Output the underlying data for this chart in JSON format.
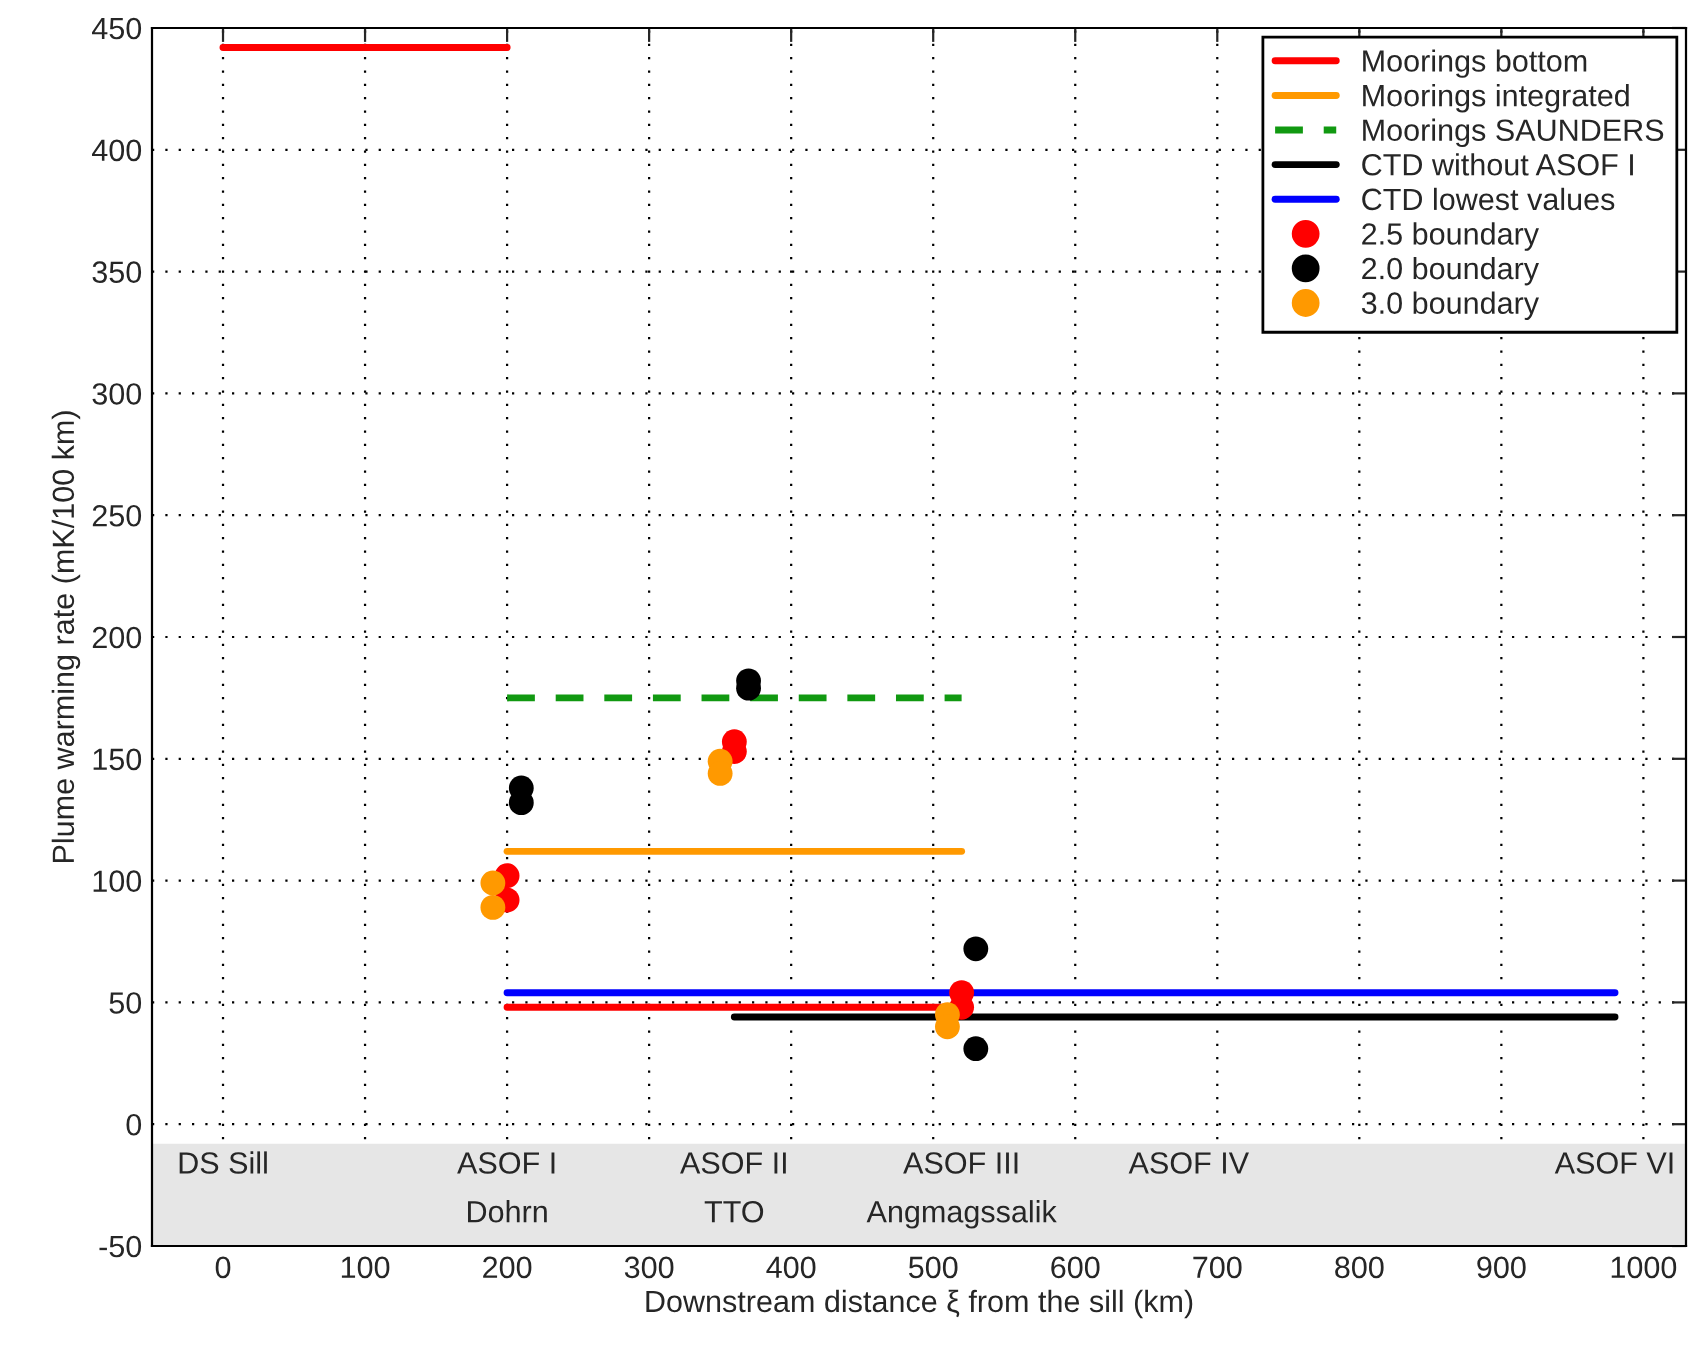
{
  "chart_data": {
    "type": "line",
    "xlabel": "Downstream distance ξ from the sill (km)",
    "ylabel": "Plume warming rate (mK/100 km)",
    "xlim": [
      -50,
      1030
    ],
    "xticks": [
      0,
      100,
      200,
      300,
      400,
      500,
      600,
      700,
      800,
      900,
      1000
    ],
    "ylim": [
      -50,
      450
    ],
    "yticks": [
      -50,
      0,
      50,
      100,
      150,
      200,
      250,
      300,
      350,
      400,
      450
    ],
    "grid": true,
    "legend": "top right",
    "series": [
      {
        "name": "Moorings bottom",
        "color": "#ff0000",
        "line_style": "solid",
        "x": [
          0,
          200,
          null,
          200,
          520
        ],
        "values": [
          442,
          442,
          null,
          48,
          48
        ]
      },
      {
        "name": "Moorings integrated",
        "color": "#ff9900",
        "line_style": "solid",
        "x": [
          200,
          520
        ],
        "values": [
          112,
          112
        ]
      },
      {
        "name": "Moorings SAUNDERS",
        "color": "#119911",
        "line_style": "dashed",
        "x": [
          200,
          520
        ],
        "values": [
          175,
          175
        ]
      },
      {
        "name": "CTD without ASOF I",
        "color": "#000000",
        "line_style": "solid",
        "x": [
          360,
          980
        ],
        "values": [
          44,
          44
        ]
      },
      {
        "name": "CTD lowest values",
        "color": "#0000ff",
        "line_style": "solid",
        "x": [
          200,
          980
        ],
        "values": [
          54,
          54
        ]
      },
      {
        "name": "2.5 boundary",
        "type": "scatter",
        "marker": "circle",
        "color": "#ff0000",
        "x": [
          200,
          200,
          360,
          360,
          520,
          520
        ],
        "values": [
          102,
          92,
          157,
          153,
          54,
          48
        ]
      },
      {
        "name": "2.0 boundary",
        "type": "scatter",
        "marker": "circle",
        "color": "#000000",
        "x": [
          210,
          210,
          370,
          370,
          530,
          530
        ],
        "values": [
          138,
          132,
          182,
          179,
          72,
          31
        ]
      },
      {
        "name": "3.0 boundary",
        "type": "scatter",
        "marker": "circle",
        "color": "#ff9900",
        "x": [
          190,
          190,
          350,
          350,
          510,
          510
        ],
        "values": [
          99,
          89,
          149,
          144,
          45,
          40
        ]
      }
    ],
    "bands": [
      {
        "axis": "y",
        "from": -50,
        "to": -8,
        "color": "#e6e6e6"
      }
    ],
    "annotations": [
      "DS Sill",
      "ASOF I",
      "ASOF II",
      "ASOF III",
      "ASOF IV",
      "ASOF VI",
      "Dohrn",
      "TTO",
      "Angmagssalik"
    ]
  }
}
